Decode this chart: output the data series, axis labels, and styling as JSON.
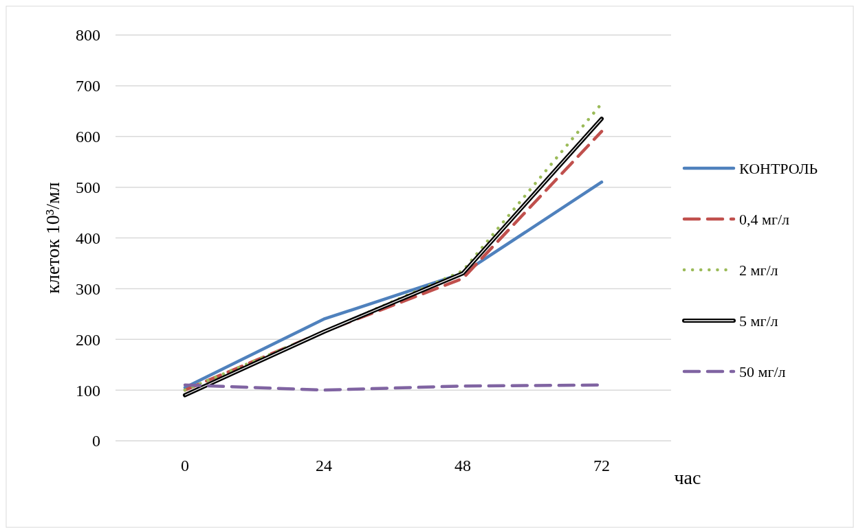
{
  "chart_data": {
    "type": "line",
    "xlabel": "час",
    "ylabel": "клеток 10³/мл",
    "categories": [
      "0",
      "24",
      "48",
      "72"
    ],
    "ylim": [
      0,
      800
    ],
    "yticks": [
      0,
      100,
      200,
      300,
      400,
      500,
      600,
      700,
      800
    ],
    "grid": "y",
    "legend": "right",
    "marker": "none",
    "series": [
      {
        "name": "КОНТРОЛЬ",
        "color": "#4f81bd",
        "line_style": "solid",
        "values": [
          105,
          240,
          330,
          510
        ]
      },
      {
        "name": "0,4 мг/л",
        "color": "#c0504d",
        "line_style": "dashed",
        "values": [
          100,
          215,
          320,
          610
        ]
      },
      {
        "name": "2 мг/л",
        "color": "#9bbb59",
        "line_style": "dotted",
        "values": [
          100,
          215,
          335,
          665
        ]
      },
      {
        "name": "5 мг/л",
        "color": "#000000",
        "line_style": "solid",
        "values": [
          90,
          215,
          330,
          635
        ]
      },
      {
        "name": "50 мг/л",
        "color": "#8064a2",
        "line_style": "dashed",
        "values": [
          110,
          100,
          108,
          110
        ]
      }
    ]
  }
}
